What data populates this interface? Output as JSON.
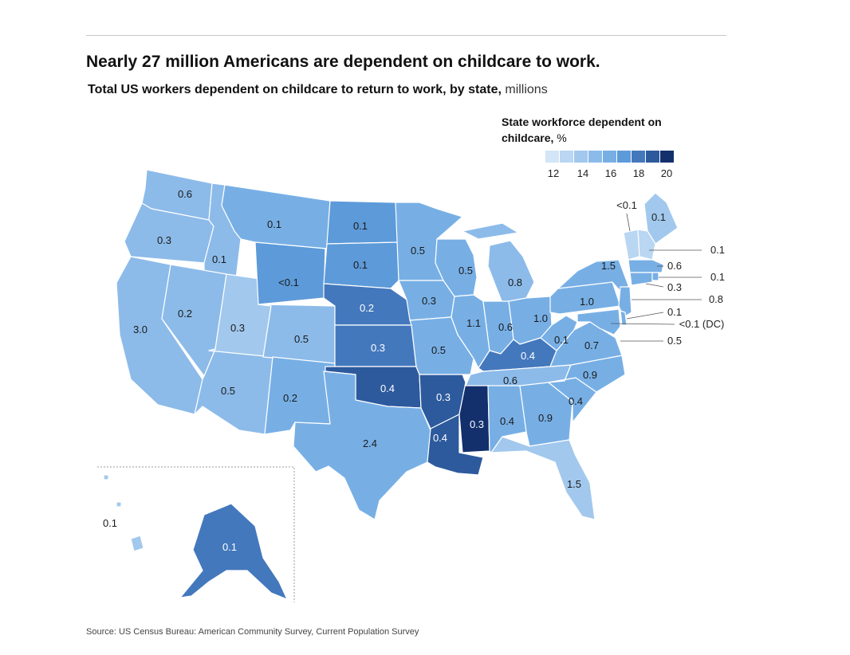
{
  "title": "Nearly 27 million Americans are dependent on childcare to work.",
  "subtitle": {
    "main": "Total US workers dependent on childcare to return to work, by state,",
    "unit": "millions"
  },
  "legend": {
    "title_bold": "State workforce dependent on childcare,",
    "title_unit": "%",
    "ticks": [
      "12",
      "14",
      "16",
      "18",
      "20"
    ],
    "colors": [
      "#d3e5f6",
      "#b9d6f2",
      "#a2c8ed",
      "#8cbbe9",
      "#77afe5",
      "#5d9ad9",
      "#4478bd",
      "#2d5a9d",
      "#13306d"
    ]
  },
  "source": "Source: US Census Bureau: American Community Survey, Current Population Survey",
  "states": [
    {
      "id": "WA",
      "value": "0.6",
      "shade": 3
    },
    {
      "id": "OR",
      "value": "0.3",
      "shade": 3
    },
    {
      "id": "CA",
      "value": "3.0",
      "shade": 3
    },
    {
      "id": "ID",
      "value": "0.1",
      "shade": 3
    },
    {
      "id": "NV",
      "value": "0.2",
      "shade": 3
    },
    {
      "id": "UT",
      "value": "0.3",
      "shade": 2
    },
    {
      "id": "AZ",
      "value": "0.5",
      "shade": 3
    },
    {
      "id": "MT",
      "value": "0.1",
      "shade": 4
    },
    {
      "id": "WY",
      "value": "<0.1",
      "shade": 5
    },
    {
      "id": "CO",
      "value": "0.5",
      "shade": 3
    },
    {
      "id": "NM",
      "value": "0.2",
      "shade": 4
    },
    {
      "id": "ND",
      "value": "0.1",
      "shade": 5
    },
    {
      "id": "SD",
      "value": "0.1",
      "shade": 5
    },
    {
      "id": "NE",
      "value": "0.2",
      "shade": 6
    },
    {
      "id": "KS",
      "value": "0.3",
      "shade": 6
    },
    {
      "id": "OK",
      "value": "0.4",
      "shade": 7
    },
    {
      "id": "TX",
      "value": "2.4",
      "shade": 4
    },
    {
      "id": "MN",
      "value": "0.5",
      "shade": 4
    },
    {
      "id": "IA",
      "value": "0.3",
      "shade": 4
    },
    {
      "id": "MO",
      "value": "0.5",
      "shade": 4
    },
    {
      "id": "AR",
      "value": "0.3",
      "shade": 7
    },
    {
      "id": "LA",
      "value": "0.4",
      "shade": 7
    },
    {
      "id": "WI",
      "value": "0.5",
      "shade": 4
    },
    {
      "id": "IL",
      "value": "1.1",
      "shade": 4
    },
    {
      "id": "MI",
      "value": "0.8",
      "shade": 3
    },
    {
      "id": "IN",
      "value": "0.6",
      "shade": 4
    },
    {
      "id": "OH",
      "value": "1.0",
      "shade": 4
    },
    {
      "id": "KY",
      "value": "0.4",
      "shade": 6
    },
    {
      "id": "TN",
      "value": "0.6",
      "shade": 3
    },
    {
      "id": "MS",
      "value": "0.3",
      "shade": 8
    },
    {
      "id": "AL",
      "value": "0.4",
      "shade": 4
    },
    {
      "id": "GA",
      "value": "0.9",
      "shade": 4
    },
    {
      "id": "FL",
      "value": "1.5",
      "shade": 2
    },
    {
      "id": "SC",
      "value": "0.4",
      "shade": 4
    },
    {
      "id": "NC",
      "value": "0.9",
      "shade": 4
    },
    {
      "id": "VA",
      "value": "0.7",
      "shade": 4
    },
    {
      "id": "WV",
      "value": "0.1",
      "shade": 4
    },
    {
      "id": "PA",
      "value": "1.0",
      "shade": 4
    },
    {
      "id": "NY",
      "value": "1.5",
      "shade": 4
    },
    {
      "id": "ME",
      "value": "0.1",
      "shade": 2
    },
    {
      "id": "VT",
      "value": "<0.1",
      "shade": 1
    },
    {
      "id": "NH",
      "value": "0.1",
      "shade": 1
    },
    {
      "id": "MA",
      "value": "0.6",
      "shade": 4
    },
    {
      "id": "RI",
      "value": "0.1",
      "shade": 4
    },
    {
      "id": "CT",
      "value": "0.3",
      "shade": 4
    },
    {
      "id": "NJ",
      "value": "0.8",
      "shade": 4
    },
    {
      "id": "DE",
      "value": "0.1",
      "shade": 4
    },
    {
      "id": "DC",
      "value": "<0.1 (DC)",
      "shade": 4
    },
    {
      "id": "MD",
      "value": "0.5",
      "shade": 4
    },
    {
      "id": "AK",
      "value": "0.1",
      "shade": 6
    },
    {
      "id": "HI",
      "value": "0.1",
      "shade": 2
    }
  ]
}
